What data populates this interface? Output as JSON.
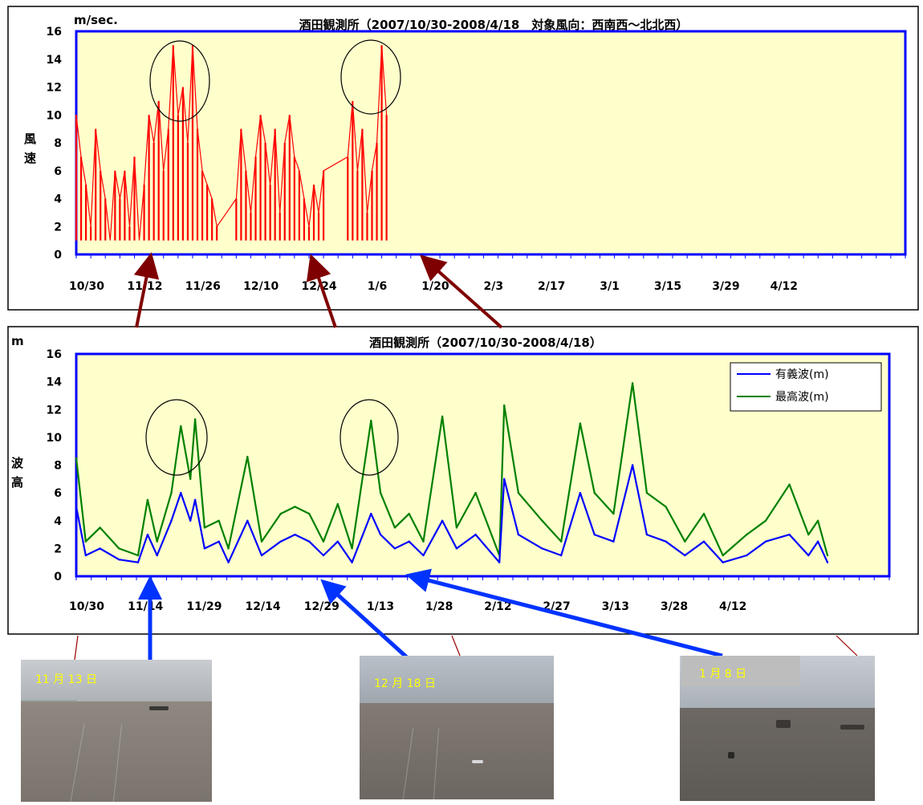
{
  "wind_chart": {
    "title": "酒田観測所（2007/10/30-2008/4/18　対象風向：西南西～北北西）",
    "unit": "m/sec.",
    "ylabel_chars": [
      "風",
      "速"
    ],
    "y_ticks": [
      "0",
      "2",
      "4",
      "6",
      "8",
      "10",
      "12",
      "14",
      "16"
    ],
    "x_ticks": [
      "10/30",
      "11/12",
      "11/26",
      "12/10",
      "12/24",
      "1/6",
      "1/20",
      "2/3",
      "2/17",
      "3/1",
      "3/15",
      "3/29",
      "4/12"
    ]
  },
  "wave_chart": {
    "title": "酒田観測所（2007/10/30-2008/4/18）",
    "unit": "m",
    "ylabel_chars": [
      "波",
      "高"
    ],
    "y_ticks": [
      "0",
      "2",
      "4",
      "6",
      "8",
      "10",
      "12",
      "14",
      "16"
    ],
    "x_ticks": [
      "10/30",
      "11/14",
      "11/29",
      "12/14",
      "12/29",
      "1/13",
      "1/28",
      "2/12",
      "2/27",
      "3/13",
      "3/28",
      "4/12"
    ],
    "legend": [
      "有義波(m)",
      "最高波(m)"
    ]
  },
  "photos": [
    {
      "caption": "11 月 13 日"
    },
    {
      "caption": "12 月 18 日"
    },
    {
      "caption": "1 月 8 日"
    }
  ],
  "colors": {
    "plot_bg": "#ffffcc",
    "axis_frame": "#0000ff",
    "wind": "#ff0000",
    "significant_wave": "#0000ff",
    "max_wave": "#008000",
    "red_arrow": "#7f0000",
    "blue_arrow": "#0033ff"
  },
  "chart_data": [
    {
      "type": "line",
      "title": "酒田観測所（2007/10/30-2008/4/18　対象風向：西南西～北北西）",
      "xlabel": "",
      "ylabel": "風速",
      "unit": "m/sec.",
      "ylim": [
        0,
        16
      ],
      "xlim": [
        "2007-10-30",
        "2008-04-18"
      ],
      "x_ticks": [
        "10/30",
        "11/12",
        "11/26",
        "12/10",
        "12/24",
        "1/6",
        "1/20",
        "2/3",
        "2/17",
        "3/1",
        "3/15",
        "3/29",
        "4/12"
      ],
      "grid": false,
      "series": [
        {
          "values": [
            [
              "2007-10-30",
              10
            ],
            [
              "2007-10-31",
              7
            ],
            [
              "2007-11-01",
              5
            ],
            [
              "2007-11-02",
              2
            ],
            [
              "2007-11-03",
              9
            ],
            [
              "2007-11-04",
              6
            ],
            [
              "2007-11-05",
              4
            ],
            [
              "2007-11-06",
              1
            ],
            [
              "2007-11-07",
              6
            ],
            [
              "2007-11-08",
              4
            ],
            [
              "2007-11-09",
              6
            ],
            [
              "2007-11-10",
              2
            ],
            [
              "2007-11-11",
              7
            ],
            [
              "2007-11-12",
              1
            ],
            [
              "2007-11-13",
              5
            ],
            [
              "2007-11-14",
              10
            ],
            [
              "2007-11-15",
              8
            ],
            [
              "2007-11-16",
              11
            ],
            [
              "2007-11-17",
              6
            ],
            [
              "2007-11-18",
              9
            ],
            [
              "2007-11-19",
              15
            ],
            [
              "2007-11-20",
              10
            ],
            [
              "2007-11-21",
              12
            ],
            [
              "2007-11-22",
              8
            ],
            [
              "2007-11-23",
              15
            ],
            [
              "2007-11-24",
              9
            ],
            [
              "2007-11-25",
              6
            ],
            [
              "2007-11-26",
              5
            ],
            [
              "2007-11-27",
              4
            ],
            [
              "2007-11-28",
              2
            ],
            [
              "2007-12-02",
              4
            ],
            [
              "2007-12-03",
              9
            ],
            [
              "2007-12-04",
              6
            ],
            [
              "2007-12-05",
              3
            ],
            [
              "2007-12-06",
              7
            ],
            [
              "2007-12-07",
              10
            ],
            [
              "2007-12-08",
              8
            ],
            [
              "2007-12-09",
              5
            ],
            [
              "2007-12-10",
              9
            ],
            [
              "2007-12-11",
              3
            ],
            [
              "2007-12-12",
              8
            ],
            [
              "2007-12-13",
              10
            ],
            [
              "2007-12-14",
              7
            ],
            [
              "2007-12-15",
              6
            ],
            [
              "2007-12-16",
              4
            ],
            [
              "2007-12-17",
              2
            ],
            [
              "2007-12-18",
              5
            ],
            [
              "2007-12-19",
              3
            ],
            [
              "2007-12-20",
              6
            ],
            [
              "2007-12-25",
              7
            ],
            [
              "2007-12-26",
              11
            ],
            [
              "2007-12-27",
              6
            ],
            [
              "2007-12-28",
              9
            ],
            [
              "2007-12-29",
              3
            ],
            [
              "2007-12-30",
              6
            ],
            [
              "2007-12-31",
              8
            ],
            [
              "2008-01-01",
              15
            ],
            [
              "2008-01-02",
              10
            ]
          ]
        }
      ]
    },
    {
      "type": "line",
      "title": "酒田観測所（2007/10/30-2008/4/18）",
      "xlabel": "",
      "ylabel": "波高",
      "unit": "m",
      "ylim": [
        0,
        16
      ],
      "xlim": [
        "2007-10-30",
        "2008-04-18"
      ],
      "x_ticks": [
        "10/30",
        "11/14",
        "11/29",
        "12/14",
        "12/29",
        "1/13",
        "1/28",
        "2/12",
        "2/27",
        "3/13",
        "3/28",
        "4/12"
      ],
      "grid": false,
      "legend": "top-right",
      "series": [
        {
          "name": "有義波(m)",
          "values": [
            [
              "2007-10-30",
              5.0
            ],
            [
              "2007-11-01",
              1.5
            ],
            [
              "2007-11-04",
              2.0
            ],
            [
              "2007-11-08",
              1.2
            ],
            [
              "2007-11-12",
              1.0
            ],
            [
              "2007-11-14",
              3.0
            ],
            [
              "2007-11-16",
              1.5
            ],
            [
              "2007-11-19",
              4.0
            ],
            [
              "2007-11-21",
              6.0
            ],
            [
              "2007-11-23",
              4.0
            ],
            [
              "2007-11-24",
              5.5
            ],
            [
              "2007-11-26",
              2.0
            ],
            [
              "2007-11-29",
              2.5
            ],
            [
              "2007-12-01",
              1.0
            ],
            [
              "2007-12-05",
              4.0
            ],
            [
              "2007-12-08",
              1.5
            ],
            [
              "2007-12-12",
              2.5
            ],
            [
              "2007-12-15",
              3.0
            ],
            [
              "2007-12-18",
              2.5
            ],
            [
              "2007-12-21",
              1.5
            ],
            [
              "2007-12-24",
              2.5
            ],
            [
              "2007-12-27",
              1.0
            ],
            [
              "2007-12-31",
              4.5
            ],
            [
              "2008-01-02",
              3.0
            ],
            [
              "2008-01-05",
              2.0
            ],
            [
              "2008-01-08",
              2.5
            ],
            [
              "2008-01-11",
              1.5
            ],
            [
              "2008-01-15",
              4.0
            ],
            [
              "2008-01-18",
              2.0
            ],
            [
              "2008-01-22",
              3.0
            ],
            [
              "2008-01-27",
              1.0
            ],
            [
              "2008-01-28",
              7.0
            ],
            [
              "2008-01-31",
              3.0
            ],
            [
              "2008-02-05",
              2.0
            ],
            [
              "2008-02-09",
              1.5
            ],
            [
              "2008-02-13",
              6.0
            ],
            [
              "2008-02-16",
              3.0
            ],
            [
              "2008-02-20",
              2.5
            ],
            [
              "2008-02-24",
              8.0
            ],
            [
              "2008-02-27",
              3.0
            ],
            [
              "2008-03-02",
              2.5
            ],
            [
              "2008-03-06",
              1.5
            ],
            [
              "2008-03-10",
              2.5
            ],
            [
              "2008-03-14",
              1.0
            ],
            [
              "2008-03-19",
              1.5
            ],
            [
              "2008-03-23",
              2.5
            ],
            [
              "2008-03-28",
              3.0
            ],
            [
              "2008-04-01",
              1.5
            ],
            [
              "2008-04-03",
              2.5
            ],
            [
              "2008-04-05",
              1.0
            ]
          ]
        },
        {
          "name": "最高波(m)",
          "values": [
            [
              "2007-10-30",
              8.5
            ],
            [
              "2007-11-01",
              2.5
            ],
            [
              "2007-11-04",
              3.5
            ],
            [
              "2007-11-08",
              2.0
            ],
            [
              "2007-11-12",
              1.5
            ],
            [
              "2007-11-14",
              5.5
            ],
            [
              "2007-11-16",
              2.5
            ],
            [
              "2007-11-19",
              6.0
            ],
            [
              "2007-11-21",
              10.8
            ],
            [
              "2007-11-23",
              7.0
            ],
            [
              "2007-11-24",
              11.3
            ],
            [
              "2007-11-26",
              3.5
            ],
            [
              "2007-11-29",
              4.0
            ],
            [
              "2007-12-01",
              2.0
            ],
            [
              "2007-12-05",
              8.6
            ],
            [
              "2007-12-08",
              2.5
            ],
            [
              "2007-12-12",
              4.5
            ],
            [
              "2007-12-15",
              5.0
            ],
            [
              "2007-12-18",
              4.5
            ],
            [
              "2007-12-21",
              2.5
            ],
            [
              "2007-12-24",
              5.2
            ],
            [
              "2007-12-27",
              2.0
            ],
            [
              "2007-12-31",
              11.2
            ],
            [
              "2008-01-02",
              6.0
            ],
            [
              "2008-01-05",
              3.5
            ],
            [
              "2008-01-08",
              4.5
            ],
            [
              "2008-01-11",
              2.5
            ],
            [
              "2008-01-15",
              11.5
            ],
            [
              "2008-01-18",
              3.5
            ],
            [
              "2008-01-22",
              6.0
            ],
            [
              "2008-01-27",
              1.5
            ],
            [
              "2008-01-28",
              12.3
            ],
            [
              "2008-01-31",
              6.0
            ],
            [
              "2008-02-05",
              4.0
            ],
            [
              "2008-02-09",
              2.5
            ],
            [
              "2008-02-13",
              11.0
            ],
            [
              "2008-02-16",
              6.0
            ],
            [
              "2008-02-20",
              4.5
            ],
            [
              "2008-02-24",
              13.9
            ],
            [
              "2008-02-27",
              6.0
            ],
            [
              "2008-03-02",
              5.0
            ],
            [
              "2008-03-06",
              2.5
            ],
            [
              "2008-03-10",
              4.5
            ],
            [
              "2008-03-14",
              1.5
            ],
            [
              "2008-03-19",
              3.0
            ],
            [
              "2008-03-23",
              4.0
            ],
            [
              "2008-03-28",
              6.6
            ],
            [
              "2008-04-01",
              3.0
            ],
            [
              "2008-04-03",
              4.0
            ],
            [
              "2008-04-05",
              1.5
            ]
          ]
        }
      ]
    }
  ]
}
